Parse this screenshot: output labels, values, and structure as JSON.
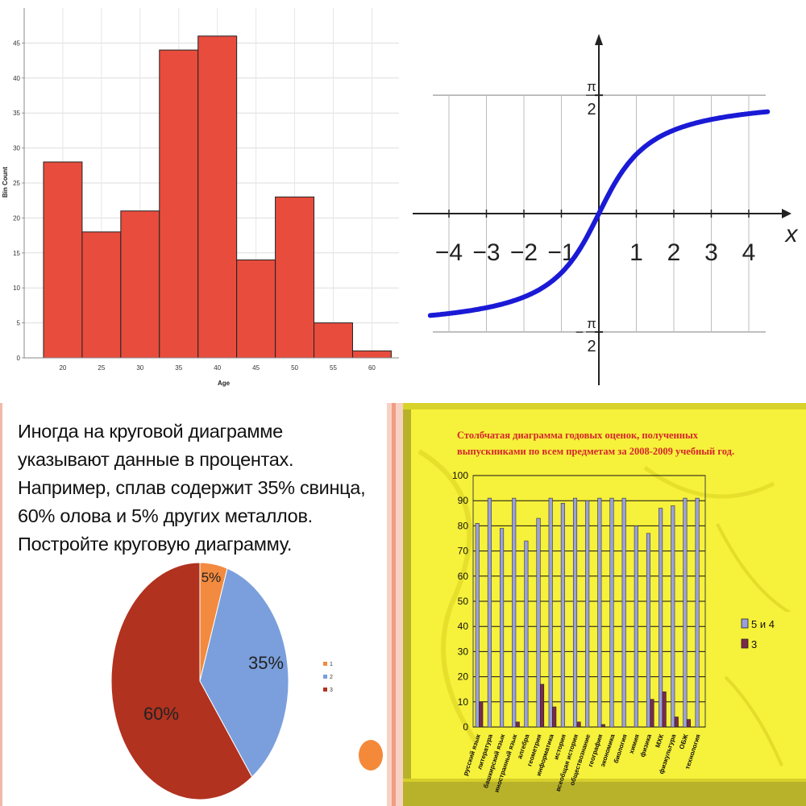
{
  "chart_data": [
    {
      "type": "bar",
      "title": "",
      "xlabel": "Age",
      "ylabel": "Bin Count",
      "bin_edges": [
        17.5,
        22.5,
        27.5,
        32.5,
        37.5,
        42.5,
        47.5,
        52.5,
        57.5,
        62.5
      ],
      "values": [
        28,
        18,
        21,
        44,
        46,
        14,
        23,
        5,
        1
      ],
      "xticks": [
        20,
        25,
        30,
        35,
        40,
        45,
        50,
        55,
        60
      ],
      "yticks": [
        0,
        5,
        10,
        15,
        20,
        25,
        30,
        35,
        40,
        45
      ],
      "xlim": [
        15,
        63.5
      ],
      "ylim": [
        0,
        50
      ],
      "grid": true,
      "bar_color": "#e84c3d"
    },
    {
      "type": "line",
      "function": "arctan(x)",
      "xlabel": "x",
      "xticks": [
        -4,
        -3,
        -2,
        -1,
        1,
        2,
        3,
        4
      ],
      "ytick_labels": [
        "π/2",
        "−π/2"
      ],
      "asymptotes": [
        1.5708,
        -1.5708
      ],
      "x_range": [
        -4.5,
        4.5
      ],
      "line_color": "#1a1ad6"
    },
    {
      "type": "pie",
      "categories": [
        "1",
        "2",
        "3"
      ],
      "values": [
        5,
        35,
        60
      ],
      "labels": [
        "5%",
        "35%",
        "60%"
      ],
      "colors": [
        "#f28a3f",
        "#7b9fdc",
        "#b1321f"
      ],
      "legend_position": "right"
    },
    {
      "type": "bar",
      "title": "Столбчатая диаграмма годовых оценок, полученных выпускниками по всем предметам за 2008-2009 учебный год.",
      "categories": [
        "русский язык",
        "литература",
        "башкирский язык",
        "иностранный язык",
        "алгебра",
        "геометрия",
        "информатика",
        "история",
        "всеобщая история",
        "обществознание",
        "география",
        "экономика",
        "биология",
        "химия",
        "физика",
        "МХК",
        "физкультура",
        "ОБЖ",
        "технология"
      ],
      "series": [
        {
          "name": "5 и 4",
          "values": [
            81,
            91,
            79,
            91,
            74,
            83,
            91,
            89,
            91,
            90,
            91,
            91,
            91,
            80,
            77,
            87,
            88,
            91,
            91
          ]
        },
        {
          "name": "3",
          "values": [
            10,
            0,
            0,
            2,
            0,
            17,
            8,
            0,
            2,
            0,
            1,
            0,
            0,
            0,
            11,
            14,
            4,
            3,
            0
          ]
        }
      ],
      "yticks": [
        0,
        10,
        20,
        30,
        40,
        50,
        60,
        70,
        80,
        90,
        100
      ],
      "ylim": [
        0,
        100
      ],
      "legend_position": "right",
      "colors": [
        "#9aa0dc",
        "#7a2a4a"
      ]
    }
  ],
  "histogram": {
    "ylabel": "Bin Count",
    "xlabel": "Age"
  },
  "atan": {
    "x_label": "x",
    "pi_top": "π",
    "pi_bottom": "π",
    "two": "2",
    "minus": "−"
  },
  "pie": {
    "lines": [
      "Иногда  на круговой диаграмме",
      "указывают данные в процентах.",
      "Например, сплав содержит 35% свинца,",
      "60% олова и 5% других металлов.",
      "Постройте круговую диаграмму."
    ]
  },
  "grades": {
    "title_line1": "Столбчатая диаграмма годовых оценок, полученных",
    "title_line2": "выпускниками по всем предметам за 2008-2009 учебный год."
  }
}
